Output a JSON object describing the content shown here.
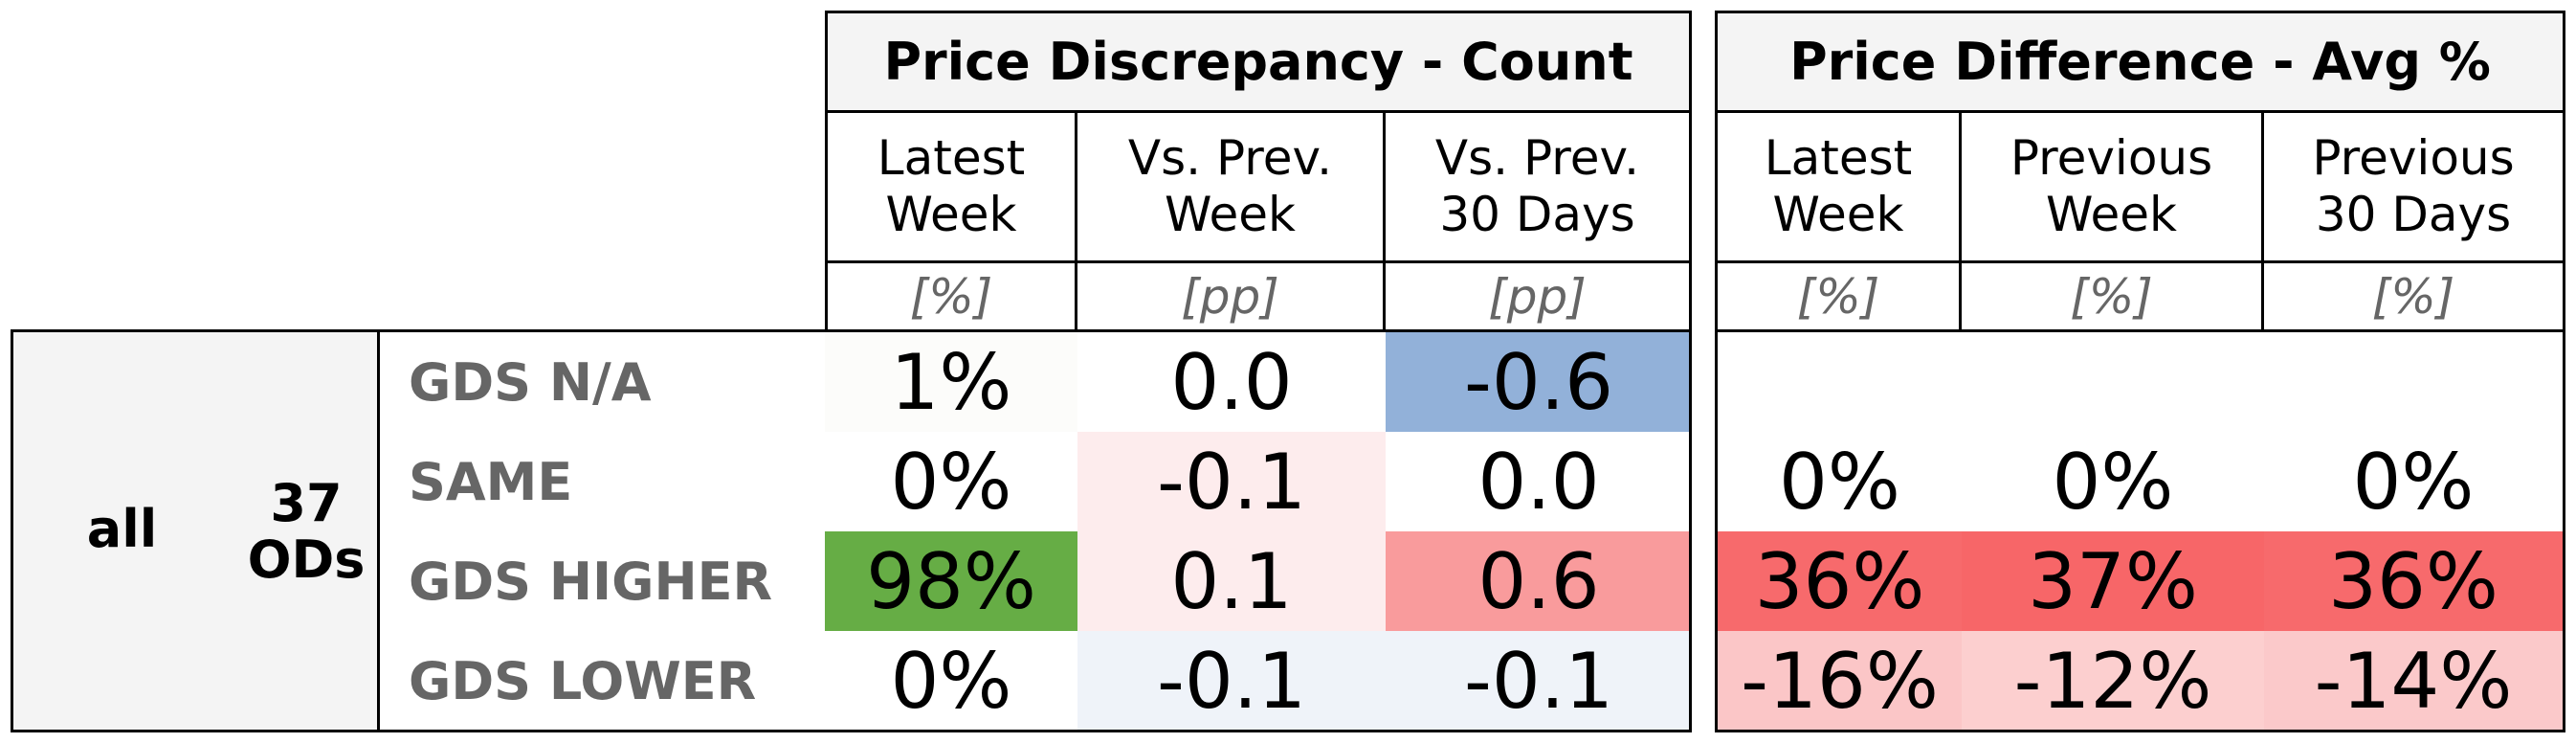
{
  "headers": {
    "count_title": "Price Discrepancy - Count",
    "avg_title": "Price Difference - Avg %",
    "count_cols": [
      {
        "line1": "Latest",
        "line2": "Week",
        "unit": "[%]"
      },
      {
        "line1": "Vs. Prev.",
        "line2": "Week",
        "unit": "[pp]"
      },
      {
        "line1": "Vs. Prev.",
        "line2": "30 Days",
        "unit": "[pp]"
      }
    ],
    "avg_cols": [
      {
        "line1": "Latest",
        "line2": "Week",
        "unit": "[%]"
      },
      {
        "line1": "Previous",
        "line2": "Week",
        "unit": "[%]"
      },
      {
        "line1": "Previous",
        "line2": "30 Days",
        "unit": "[%]"
      }
    ]
  },
  "group": {
    "label": "all",
    "count_line1": "37",
    "count_line2": "ODs"
  },
  "rows": [
    {
      "label": "GDS N/A",
      "count": [
        "1%",
        "0.0",
        "-0.6"
      ],
      "avg": [
        "",
        "",
        ""
      ],
      "count_colors": [
        "#fcfcfa",
        "#ffffff",
        "#92b1d9"
      ],
      "avg_colors": [
        "#ffffff",
        "#ffffff",
        "#ffffff"
      ]
    },
    {
      "label": "SAME",
      "count": [
        "0%",
        "-0.1",
        "0.0"
      ],
      "avg": [
        "0%",
        "0%",
        "0%"
      ],
      "count_colors": [
        "#ffffff",
        "#fdeced",
        "#ffffff"
      ],
      "avg_colors": [
        "#ffffff",
        "#ffffff",
        "#ffffff"
      ]
    },
    {
      "label": "GDS HIGHER",
      "count": [
        "98%",
        "0.1",
        "0.6"
      ],
      "avg": [
        "36%",
        "37%",
        "36%"
      ],
      "count_colors": [
        "#66ad45",
        "#fdeced",
        "#f99b9c"
      ],
      "avg_colors": [
        "#f76a6c",
        "#f76668",
        "#f76a6c"
      ]
    },
    {
      "label": "GDS LOWER",
      "count": [
        "0%",
        "-0.1",
        "-0.1"
      ],
      "avg": [
        "-16%",
        "-12%",
        "-14%"
      ],
      "count_colors": [
        "#ffffff",
        "#eff3f9",
        "#eff3f9"
      ],
      "avg_colors": [
        "#fbc6c7",
        "#fccfcf",
        "#fbc9ca"
      ]
    }
  ]
}
